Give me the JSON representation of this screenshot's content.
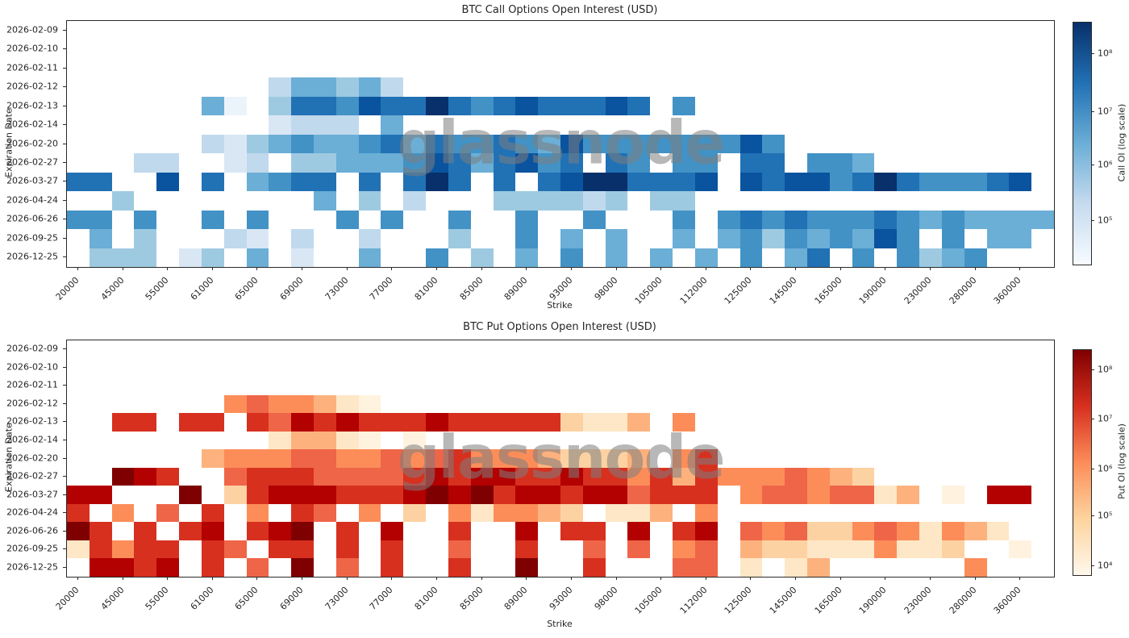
{
  "watermark_text": "glassnode",
  "chart_data": [
    {
      "type": "heatmap",
      "title": "BTC Call Options Open Interest (USD)",
      "xlabel": "Strike",
      "ylabel": "Expiration Date",
      "colorbar_label": "Call OI (log scale)",
      "colorbar_scale": "log",
      "legend_position": "right-colorbar",
      "grid_lines": "off",
      "n_cols": 44,
      "x_ticks_note": "labels mark every other of 44 strike columns",
      "x_tick_labels": [
        "20000",
        "45000",
        "55000",
        "61000",
        "65000",
        "69000",
        "73000",
        "77000",
        "81000",
        "85000",
        "89000",
        "93000",
        "98000",
        "105000",
        "112000",
        "125000",
        "145000",
        "165000",
        "190000",
        "230000",
        "280000",
        "360000"
      ],
      "y_tick_labels": [
        "2026-02-09",
        "2026-02-10",
        "2026-02-11",
        "2026-02-12",
        "2026-02-13",
        "2026-02-14",
        "2026-02-20",
        "2026-02-27",
        "2026-03-27",
        "2026-04-24",
        "2026-06-26",
        "2026-09-25",
        "2026-12-25"
      ],
      "intensity_note": "0 = no open interest (white); 1-9 = increasing OI on log scale ~1e5 to ~5e8 USD",
      "palette": [
        "",
        "#ebf3fb",
        "#d9e7f5",
        "#c0d9ed",
        "#9ecae1",
        "#6baed6",
        "#4292c6",
        "#2171b5",
        "#0a539e",
        "#08306b"
      ],
      "gradient": [
        "#f7fbff",
        "#c6dbef",
        "#6baed6",
        "#2171b5",
        "#08306b"
      ],
      "colorbar_ticks": [
        {
          "label": "10⁸",
          "pos": 0.13
        },
        {
          "label": "10⁷",
          "pos": 0.37
        },
        {
          "label": "10⁶",
          "pos": 0.59
        },
        {
          "label": "10⁵",
          "pos": 0.82
        }
      ],
      "grid": [
        "00000000000000000000000000000000000000000000",
        "00000000000000000000000000000000000000000000",
        "00000000000000000000000000000000000000000000",
        "00000000035545300000000000000000000000000000",
        "00000051047768779767877787060000000000000000",
        "00000000023330500000000000000000000000000000",
        "00000032456556757667658666666686000000000000",
        "00033002304455568757867076066077066500000000",
        "77008070567707079707078997778087886797666780",
        "00400000000504030004444340440000000000000000",
        "66060060600060600600600600060676766676565555",
        "05040003203003000400605050050564656586060550",
        "04440240502005006040506050505060570606456000"
      ]
    },
    {
      "type": "heatmap",
      "title": "BTC Put Options Open Interest (USD)",
      "xlabel": "Strike",
      "ylabel": "Expiration Date",
      "colorbar_label": "Put OI (log scale)",
      "colorbar_scale": "log",
      "legend_position": "right-colorbar",
      "grid_lines": "off",
      "n_cols": 44,
      "x_ticks_note": "labels mark every other of 44 strike columns",
      "x_tick_labels": [
        "20000",
        "45000",
        "55000",
        "61000",
        "65000",
        "69000",
        "73000",
        "77000",
        "81000",
        "85000",
        "89000",
        "93000",
        "98000",
        "105000",
        "112000",
        "125000",
        "145000",
        "165000",
        "190000",
        "230000",
        "280000",
        "360000"
      ],
      "y_tick_labels": [
        "2026-02-09",
        "2026-02-10",
        "2026-02-11",
        "2026-02-12",
        "2026-02-13",
        "2026-02-14",
        "2026-02-20",
        "2026-02-27",
        "2026-03-27",
        "2026-04-24",
        "2026-06-26",
        "2026-09-25",
        "2026-12-25"
      ],
      "intensity_note": "0 = no open interest (white); 1-9 = increasing OI on log scale ~1e4 to ~4e8 USD",
      "palette": [
        "",
        "#fff2df",
        "#fee7c6",
        "#fdd2a3",
        "#fdb27e",
        "#fc8d59",
        "#ef6548",
        "#d7301f",
        "#b30000",
        "#7f0000"
      ],
      "gradient": [
        "#fff7ec",
        "#fdd49e",
        "#fc8d59",
        "#d7301f",
        "#7f0000"
      ],
      "colorbar_ticks": [
        {
          "label": "10⁸",
          "pos": 0.09
        },
        {
          "label": "10⁷",
          "pos": 0.31
        },
        {
          "label": "10⁶",
          "pos": 0.53
        },
        {
          "label": "10⁵",
          "pos": 0.74
        },
        {
          "label": "10⁴",
          "pos": 0.96
        }
      ],
      "grid": [
        "00000000000000000000000000000000000000000000",
        "00000000000000000000000000000000000000000000",
        "00000000000000000000000000000000000000000000",
        "00000005655421000000000000000000000000000000",
        "00770770768787778777773224050000000000000000",
        "00000000024421010000000000000000000000000000",
        "00000045556655656755543334057000000000000000",
        "00987006777666678788778775747555654300000000",
        "88000903788877789897887886777056656624010880",
        "70506070507605030525543022405000000000000000",
        "97070780789070800700807708078065633565254200",
        "27577076077070700600700606056043322252230010",
        "08878070609060700700900700066020240000005000"
      ]
    }
  ]
}
